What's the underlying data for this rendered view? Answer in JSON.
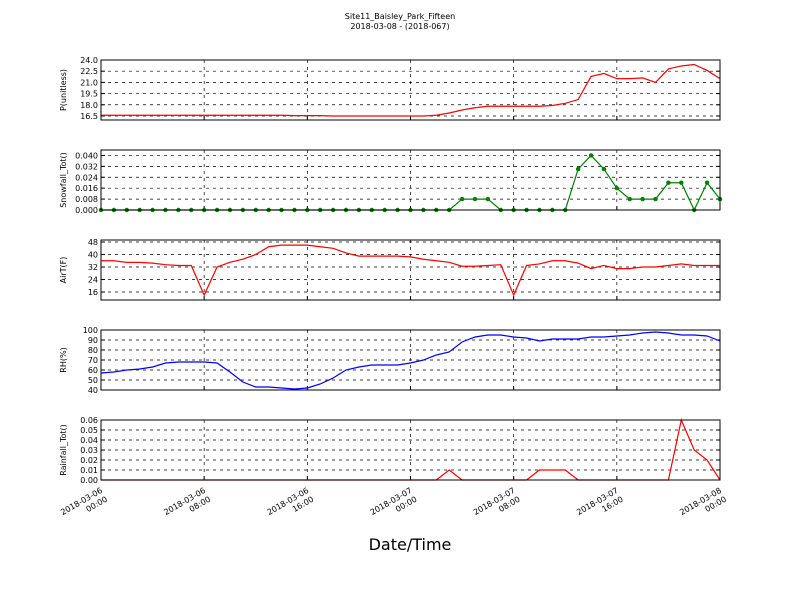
{
  "title": "Site11_Baisley_Park_Fifteen",
  "subtitle": "2018-03-08 - (2018-067)",
  "xlabel": "Date/Time",
  "x": [
    "2018-03-06 00:00",
    "2018-03-06 01:00",
    "2018-03-06 02:00",
    "2018-03-06 03:00",
    "2018-03-06 04:00",
    "2018-03-06 05:00",
    "2018-03-06 06:00",
    "2018-03-06 07:00",
    "2018-03-06 08:00",
    "2018-03-06 09:00",
    "2018-03-06 10:00",
    "2018-03-06 11:00",
    "2018-03-06 12:00",
    "2018-03-06 13:00",
    "2018-03-06 14:00",
    "2018-03-06 15:00",
    "2018-03-06 16:00",
    "2018-03-06 17:00",
    "2018-03-06 18:00",
    "2018-03-06 19:00",
    "2018-03-06 20:00",
    "2018-03-06 21:00",
    "2018-03-06 22:00",
    "2018-03-06 23:00",
    "2018-03-07 00:00",
    "2018-03-07 01:00",
    "2018-03-07 02:00",
    "2018-03-07 03:00",
    "2018-03-07 04:00",
    "2018-03-07 05:00",
    "2018-03-07 06:00",
    "2018-03-07 07:00",
    "2018-03-07 08:00",
    "2018-03-07 09:00",
    "2018-03-07 10:00",
    "2018-03-07 11:00",
    "2018-03-07 12:00",
    "2018-03-07 13:00",
    "2018-03-07 14:00",
    "2018-03-07 15:00",
    "2018-03-07 16:00",
    "2018-03-07 17:00",
    "2018-03-07 18:00",
    "2018-03-07 19:00",
    "2018-03-07 20:00",
    "2018-03-07 21:00",
    "2018-03-07 22:00",
    "2018-03-07 23:00",
    "2018-03-08 00:00"
  ],
  "xlim": [
    "2018-03-06 00:00",
    "2018-03-08 00:00"
  ],
  "xticks": [
    "2018-03-06 00:00",
    "2018-03-06 08:00",
    "2018-03-06 16:00",
    "2018-03-07 00:00",
    "2018-03-07 08:00",
    "2018-03-07 16:00",
    "2018-03-08 00:00"
  ],
  "chart_data": [
    {
      "type": "line",
      "ylabel": "P(unitless)",
      "color": "#ff0000",
      "grid": true,
      "ylim": [
        15.96,
        24.0
      ],
      "yticks": [
        {
          "value": 16.5,
          "label": "16.5"
        },
        {
          "value": 18,
          "label": "18.0"
        },
        {
          "value": 19.5,
          "label": "19.5"
        },
        {
          "value": 21,
          "label": "21.0"
        },
        {
          "value": 22.5,
          "label": "22.5"
        },
        {
          "value": 24,
          "label": "24.0"
        }
      ],
      "values": [
        16.6,
        16.6,
        16.6,
        16.6,
        16.6,
        16.6,
        16.6,
        16.6,
        16.6,
        16.6,
        16.6,
        16.6,
        16.6,
        16.6,
        16.6,
        16.55,
        16.55,
        16.55,
        16.5,
        16.5,
        16.5,
        16.5,
        16.5,
        16.5,
        16.5,
        16.5,
        16.6,
        16.9,
        17.3,
        17.6,
        17.8,
        17.8,
        17.8,
        17.8,
        17.8,
        17.9,
        18.2,
        18.7,
        21.8,
        22.2,
        21.5,
        21.5,
        21.6,
        21.0,
        22.8,
        23.2,
        23.4,
        22.6,
        21.5
      ]
    },
    {
      "type": "line",
      "ylabel": "Snowfall_Tot()",
      "color": "#007f00",
      "grid": true,
      "markers": true,
      "ylim": [
        0,
        0.044
      ],
      "yticks": [
        {
          "value": 0,
          "label": "0.000"
        },
        {
          "value": 0.008,
          "label": "0.008"
        },
        {
          "value": 0.016,
          "label": "0.016"
        },
        {
          "value": 0.024,
          "label": "0.024"
        },
        {
          "value": 0.032,
          "label": "0.032"
        },
        {
          "value": 0.04,
          "label": "0.040"
        }
      ],
      "values": [
        0,
        0,
        0,
        0,
        0,
        0,
        0,
        0,
        0,
        0,
        0,
        0,
        0,
        0,
        0,
        0,
        0,
        0,
        0,
        0,
        0,
        0,
        0,
        0,
        0,
        0,
        0,
        0,
        0.008,
        0.008,
        0.008,
        0,
        0,
        0,
        0,
        0,
        0,
        0.03,
        0.04,
        0.03,
        0.016,
        0.008,
        0.008,
        0.008,
        0.02,
        0.02,
        0,
        0.02,
        0.008
      ]
    },
    {
      "type": "line",
      "ylabel": "AirT(F)",
      "color": "#ff0000",
      "grid": true,
      "ylim": [
        10.9,
        49.3
      ],
      "yticks": [
        16,
        24,
        32,
        40,
        48
      ],
      "values": [
        36,
        36,
        35,
        35,
        34.5,
        33.5,
        33,
        33,
        14,
        32,
        35,
        37,
        40,
        45,
        46,
        46,
        46,
        45,
        44,
        41,
        39,
        39,
        39,
        39,
        38.5,
        37,
        36,
        35,
        32.5,
        32.5,
        33,
        33.5,
        14,
        33,
        34,
        36,
        36,
        34.5,
        31,
        33,
        31,
        31,
        32,
        32,
        33,
        34,
        33,
        33,
        33
      ]
    },
    {
      "type": "line",
      "ylabel": "RH(%)",
      "color": "#0000ff",
      "grid": true,
      "ylim": [
        40,
        100
      ],
      "yticks": [
        40,
        50,
        60,
        70,
        80,
        90,
        100
      ],
      "values": [
        57,
        58,
        60,
        61,
        63,
        67,
        68,
        68,
        68,
        67,
        58,
        48,
        43,
        43,
        42,
        41,
        42,
        46,
        52,
        60,
        63,
        65,
        65,
        65,
        67,
        70,
        75,
        78,
        88,
        93,
        95,
        95,
        93,
        92,
        89,
        91,
        91,
        91,
        93,
        93,
        94,
        95,
        97,
        98,
        97,
        95,
        95,
        94,
        89
      ]
    },
    {
      "type": "line",
      "ylabel": "Rainfall_Tot()",
      "color": "#ff0000",
      "grid": true,
      "ylim": [
        0,
        0.06
      ],
      "yticks": [
        {
          "value": 0,
          "label": "0.00"
        },
        {
          "value": 0.01,
          "label": "0.01"
        },
        {
          "value": 0.02,
          "label": "0.02"
        },
        {
          "value": 0.03,
          "label": "0.03"
        },
        {
          "value": 0.04,
          "label": "0.04"
        },
        {
          "value": 0.05,
          "label": "0.05"
        },
        {
          "value": 0.06,
          "label": "0.06"
        }
      ],
      "values": [
        0,
        0,
        0,
        0,
        0,
        0,
        0,
        0,
        0,
        0,
        0,
        0,
        0,
        0,
        0,
        0,
        0,
        0,
        0,
        0,
        0,
        0,
        0,
        0,
        0,
        0,
        0,
        0.01,
        0,
        0,
        0,
        0,
        0,
        0,
        0.01,
        0.01,
        0.01,
        0,
        0,
        0,
        0,
        0,
        0,
        0,
        0,
        0.06,
        0.03,
        0.02,
        0
      ]
    }
  ]
}
